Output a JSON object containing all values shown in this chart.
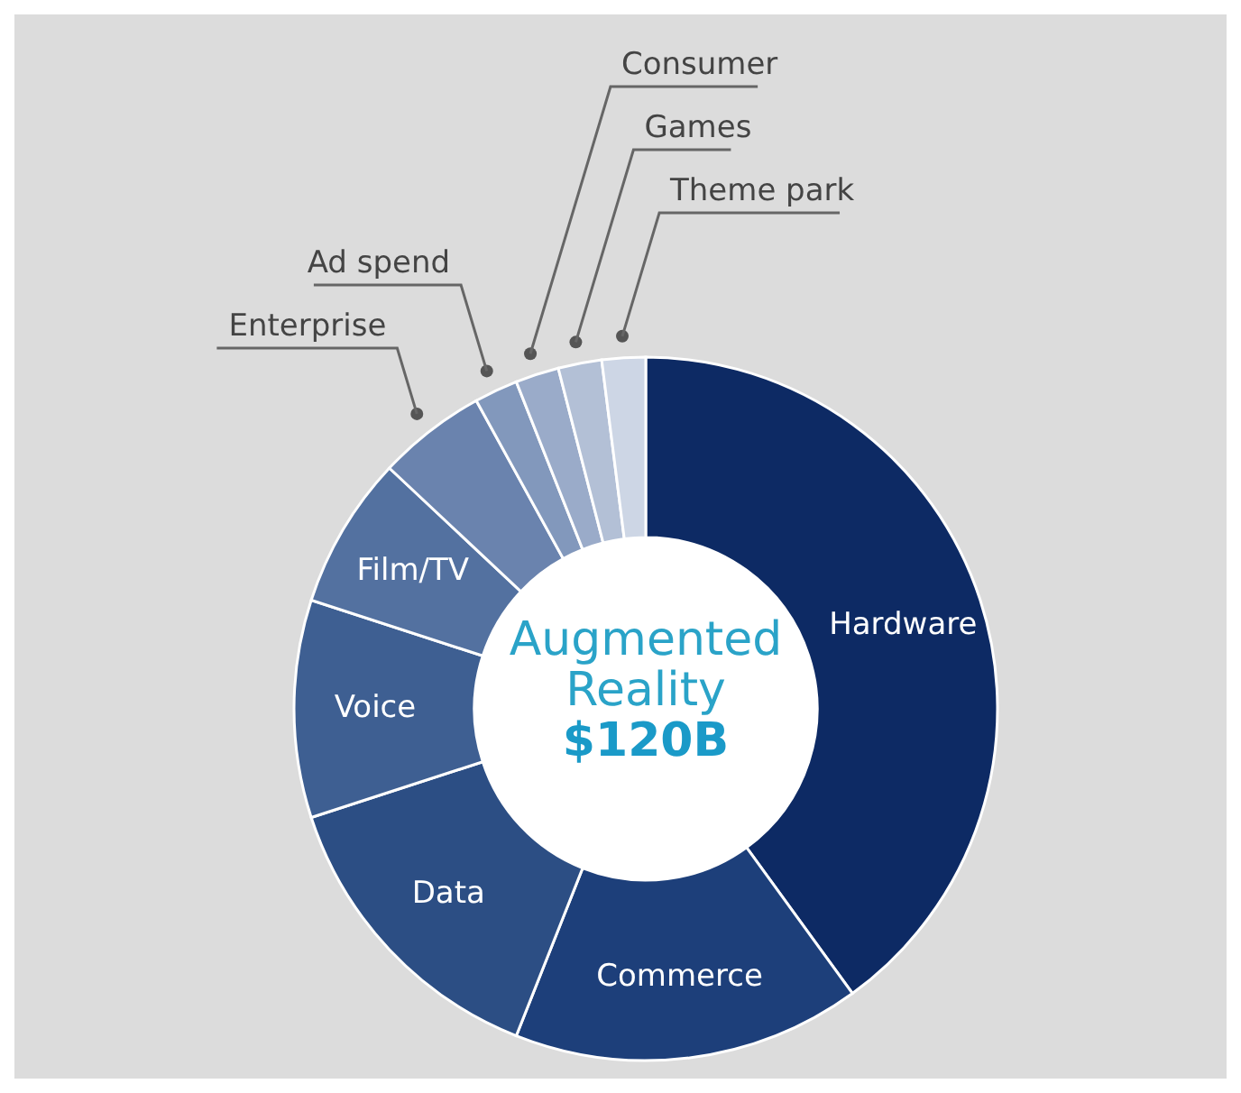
{
  "chart_data": {
    "type": "donut",
    "title": "Augmented Reality",
    "subtitle": "$120B",
    "categories": [
      "Hardware",
      "Commerce",
      "Data",
      "Voice",
      "Film/TV",
      "Enterprise",
      "Ad spend",
      "Consumer",
      "Games",
      "Theme park"
    ],
    "values": [
      40,
      16,
      14,
      10,
      7,
      5,
      2,
      2,
      2,
      2
    ],
    "colors": [
      "#0d2a64",
      "#1d3f7a",
      "#2c4e84",
      "#3e5f92",
      "#5371a0",
      "#6a83ae",
      "#8298bc",
      "#9aabc9",
      "#b3c0d6",
      "#cdd6e5"
    ]
  }
}
